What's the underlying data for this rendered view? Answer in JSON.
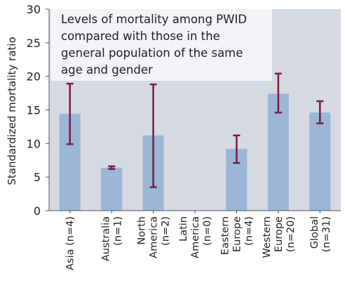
{
  "chart_data": {
    "type": "bar",
    "title": "Levels of mortality among PWID compared with those in the general population of the same age and gender",
    "ylabel": "Standardized mortality ratio",
    "xlabel": "",
    "ylim": [
      0,
      30
    ],
    "yticks": [
      0,
      5,
      10,
      15,
      20,
      25,
      30
    ],
    "grid": false,
    "categories": [
      "Asia (n=4)",
      "Australia (n=1)",
      "North America (n=2)",
      "Latin America (n=0)",
      "Eastern Europe (n=4)",
      "Western Europe (n=20)",
      "Global (n=31)"
    ],
    "category_lines": [
      [
        "Asia (n=4)"
      ],
      [
        "Australia",
        "(n=1)"
      ],
      [
        "North",
        "America",
        "(n=2)"
      ],
      [
        "Latin",
        "America",
        "(n=0)"
      ],
      [
        "Eastern",
        "Europe",
        "(n=4)"
      ],
      [
        "Western",
        "Europe",
        "(n=20)"
      ],
      [
        "Global",
        "(n=31)"
      ]
    ],
    "values": [
      14.4,
      6.4,
      11.2,
      null,
      9.2,
      17.4,
      14.6
    ],
    "error_low": [
      9.9,
      6.2,
      3.5,
      null,
      7.1,
      14.6,
      13.0
    ],
    "error_high": [
      18.9,
      6.6,
      18.8,
      null,
      11.2,
      20.4,
      16.3
    ],
    "colors": {
      "bar": "#9bb6d6",
      "error_bar": "#7a1a45",
      "plot_background": "#d5d9e2",
      "title_box": "#f3f4f8",
      "axis": "#555555",
      "text": "#222222"
    }
  }
}
